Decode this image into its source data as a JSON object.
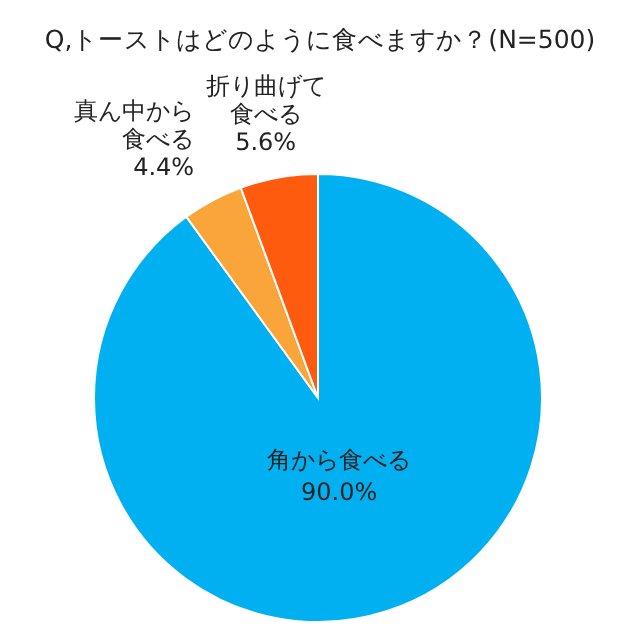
{
  "chart_data": {
    "type": "pie",
    "title": "Q,トーストはどのように食べますか？(N=500)",
    "categories": [
      "角から食べる",
      "真ん中から食べる",
      "折り曲げて食べる"
    ],
    "values": [
      90.0,
      4.4,
      5.6
    ],
    "colors": [
      "#00b0f0",
      "#f9a53a",
      "#ff5b0f"
    ],
    "value_labels": [
      "90.0%",
      "4.4%",
      "5.6%"
    ]
  }
}
